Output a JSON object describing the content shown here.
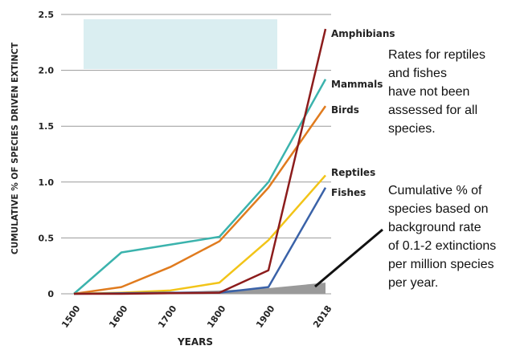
{
  "chart_data": {
    "type": "line",
    "ylabel": "CUMULATIVE % OF SPECIES DRIVEN EXTINCT",
    "xlabel": "YEARS",
    "categories": [
      "1500",
      "1600",
      "1700",
      "1800",
      "1900",
      "2018"
    ],
    "ylim": [
      0,
      2.5
    ],
    "yticks": [
      "0",
      "0.5",
      "1.0",
      "1.5",
      "2.0",
      "2.5"
    ],
    "grid": "horizontal",
    "series": [
      {
        "name": "Mammals",
        "color": "#3bb3ad",
        "values": [
          0,
          0.37,
          0.44,
          0.51,
          1.0,
          1.92
        ]
      },
      {
        "name": "Birds",
        "color": "#e07b1e",
        "values": [
          0,
          0.06,
          0.24,
          0.47,
          0.95,
          1.68
        ]
      },
      {
        "name": "Reptiles",
        "color": "#f2c418",
        "values": [
          0,
          0.01,
          0.03,
          0.1,
          0.48,
          1.06
        ]
      },
      {
        "name": "Fishes",
        "color": "#3a62a8",
        "values": [
          0,
          0.005,
          0.01,
          0.01,
          0.06,
          0.95
        ]
      },
      {
        "name": "Amphibians",
        "color": "#8c1c1c",
        "values": [
          0,
          0.0,
          0.005,
          0.01,
          0.21,
          2.37
        ]
      }
    ],
    "background_rate_band": {
      "color": "#9a9a9a",
      "values_low": [
        0,
        0,
        0,
        0,
        0,
        0
      ],
      "values_high": [
        0,
        0.005,
        0.015,
        0.03,
        0.05,
        0.1
      ]
    },
    "legend_box": {
      "color": "#daeef1"
    },
    "annotations": [
      {
        "id": "rates-note",
        "lines": [
          "Rates for reptiles",
          "and fishes",
          "have not been",
          "assessed for all",
          "species."
        ]
      },
      {
        "id": "background-note",
        "lines": [
          "Cumulative % of",
          "species based on",
          "background rate",
          "of 0.1-2 extinctions",
          "per million species",
          "per year."
        ]
      }
    ]
  }
}
